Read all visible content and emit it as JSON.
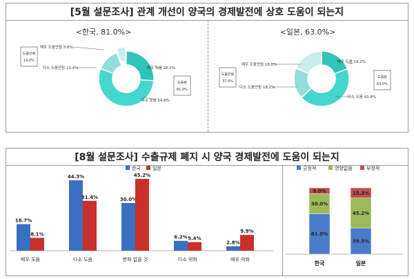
{
  "top_section": {
    "title": "[5월 설문조사] 관계 개선이 양국의 경제발전에 상호 도움이 되는지"
  },
  "bottom_section": {
    "title": "[8월 설문조사] 수출규제 폐지 시 양국 경제발전에 도움이 되는지"
  },
  "colors": {
    "teal_dark": "#2ec4b6",
    "teal_mid": "#45d6cc",
    "teal_light": "#95ddd8",
    "teal_pale": "#c8eeeb",
    "bar_korea": "#3b6fc0",
    "bar_japan": "#c9302c",
    "stack_positive": "#4a7cc9",
    "stack_neutral": "#9bbb59",
    "stack_negative": "#c0504d"
  },
  "chart_data": [
    {
      "type": "pie",
      "title": "<한국, 81.0%>",
      "slices": [
        {
          "label": "매우 도움",
          "display": "매우 도움 26.2%",
          "value": 26.2
        },
        {
          "label": "다소 도움",
          "display": "다소 도움 54.8%",
          "value": 54.8
        },
        {
          "label": "다소 도움안됨",
          "display": "다소 도움안됨 13.4%",
          "value": 13.4
        },
        {
          "label": "매우 도움안됨",
          "display": "매우 도움안됨 5.6%",
          "value": 5.6
        }
      ],
      "group_labels": {
        "positive": {
          "label": "도움됨",
          "value": "81.0%"
        },
        "negative": {
          "label": "도움안됨",
          "value": "19.0%"
        }
      }
    },
    {
      "type": "pie",
      "title": "<일본, 63.0%>",
      "slices": [
        {
          "label": "매우 도움",
          "display": "매우 도움 19.2%",
          "value": 19.2
        },
        {
          "label": "다소 도움",
          "display": "다소 도움 43.8%",
          "value": 43.8
        },
        {
          "label": "다소 도움안됨",
          "display": "다소 도움안됨 18.2%",
          "value": 18.2
        },
        {
          "label": "매우 도움안됨",
          "display": "매우 도움안됨 18.8%",
          "value": 18.8
        }
      ],
      "group_labels": {
        "positive": {
          "label": "도움됨",
          "value": "63.0%"
        },
        "negative": {
          "label": "도움안됨",
          "value": "37.0%"
        }
      }
    },
    {
      "type": "bar",
      "categories": [
        "매우 도움",
        "다소 도움",
        "변화 없을 것",
        "다소 악화",
        "매우 악화"
      ],
      "series": [
        {
          "name": "한국",
          "values": [
            16.7,
            44.3,
            30.0,
            6.2,
            2.8
          ],
          "labels": [
            "16.7%",
            "44.3%",
            "30.0%",
            "6.2%",
            "2.8%"
          ]
        },
        {
          "name": "일본",
          "values": [
            8.1,
            31.4,
            45.2,
            5.4,
            9.9
          ],
          "labels": [
            "8.1%",
            "31.4%",
            "45.2%",
            "5.4%",
            "9.9%"
          ]
        }
      ],
      "ylim": [
        0,
        50
      ],
      "legend": "top-center"
    },
    {
      "type": "bar",
      "stacked": true,
      "categories": [
        "한국",
        "일본"
      ],
      "series": [
        {
          "name": "긍정적",
          "values": [
            61.0,
            39.5
          ],
          "labels": [
            "61.0%",
            "39.5%"
          ]
        },
        {
          "name": "영향없음",
          "values": [
            30.0,
            45.2
          ],
          "labels": [
            "30.0%",
            "45.2%"
          ]
        },
        {
          "name": "부정적",
          "values": [
            9.0,
            15.3
          ],
          "labels": [
            "9.0%",
            "15.3%"
          ]
        }
      ],
      "ylim": [
        0,
        100
      ],
      "legend": "top-center"
    }
  ]
}
